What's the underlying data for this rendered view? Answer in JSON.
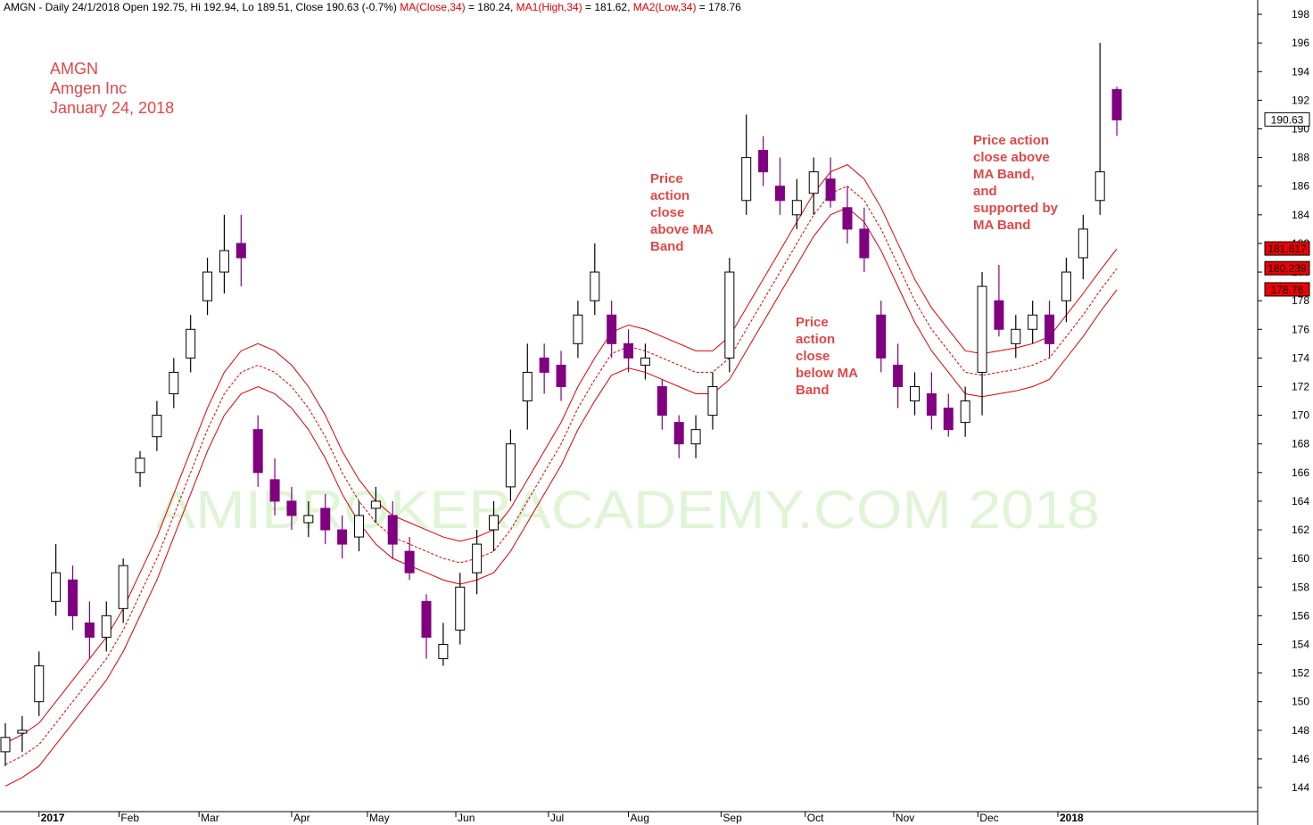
{
  "chart_data": {
    "type": "candlestick",
    "header": [
      {
        "text": "AMGN - Daily 24/1/2018 Open 192.75, Hi 192.94, Lo 189.51, Close 190.63 (-0.7%) ",
        "color": "#000000"
      },
      {
        "text": "MA(Close,34)",
        "color": "#dd0000"
      },
      {
        "text": " = 180.24, ",
        "color": "#000000"
      },
      {
        "text": "MA1(High,34)",
        "color": "#dd0000"
      },
      {
        "text": " = 181.62, ",
        "color": "#000000"
      },
      {
        "text": "MA2(Low,34)",
        "color": "#dd0000"
      },
      {
        "text": " = 178.76",
        "color": "#000000"
      }
    ],
    "title_lines": [
      "AMGN",
      "Amgen Inc",
      "January 24, 2018"
    ],
    "annotations": [
      {
        "lines": [
          "Price",
          "action",
          "close",
          "above MA",
          "Band"
        ]
      },
      {
        "lines": [
          "Price",
          "action",
          "close",
          "below MA",
          "Band"
        ]
      },
      {
        "lines": [
          "Price action",
          "close above",
          "MA Band,",
          "and",
          "supported by",
          "MA Band"
        ]
      }
    ],
    "watermark": "AMIBROKERACADEMY.COM  2018",
    "x": [
      0,
      4,
      8,
      12,
      16,
      20,
      24,
      28,
      32,
      36,
      40,
      44,
      48,
      52,
      56,
      60,
      64,
      68,
      72,
      76,
      80,
      84,
      88,
      92,
      96,
      100,
      104,
      108,
      112,
      116,
      120,
      124,
      128,
      132,
      136,
      140,
      144,
      148,
      152,
      156,
      160,
      164,
      168,
      172,
      176,
      180,
      184,
      188,
      192,
      196,
      200,
      204,
      208,
      212,
      216,
      220,
      224,
      228,
      232,
      236,
      240,
      244,
      248,
      252,
      256,
      260,
      264
    ],
    "open": [
      146.5,
      147.8,
      150,
      157,
      158.5,
      155.5,
      154.5,
      156.5,
      166,
      168.5,
      171.5,
      174,
      178,
      180,
      182,
      169,
      165.5,
      164,
      162.5,
      163.5,
      162,
      161.5,
      163.5,
      163,
      160.5,
      157,
      153,
      155,
      159,
      162,
      165,
      171,
      174,
      173.5,
      175,
      178,
      177,
      175,
      173.5,
      172,
      169.5,
      168,
      170,
      174,
      185,
      188.5,
      186,
      184,
      185.5,
      186.5,
      184.5,
      183,
      177,
      173.5,
      171,
      171.5,
      170.5,
      169.5,
      173,
      178,
      175,
      176,
      177,
      178,
      181,
      185,
      192.75
    ],
    "high": [
      148.5,
      149,
      153.5,
      161,
      159.5,
      157,
      157,
      160,
      167.5,
      171,
      174,
      177,
      181,
      184,
      184,
      170,
      167,
      165,
      164,
      164.5,
      163,
      164,
      165,
      164,
      161.5,
      157.5,
      155.5,
      159,
      162,
      164,
      169,
      175,
      175,
      174.5,
      178,
      182,
      178,
      176,
      175,
      172.5,
      170,
      170,
      173,
      181,
      191,
      189.5,
      188,
      186.5,
      188,
      188,
      186,
      184.5,
      178,
      175,
      173,
      173,
      171.5,
      172,
      180,
      180.5,
      177,
      178,
      178,
      181,
      184,
      196,
      192.94
    ],
    "low": [
      145.5,
      146.5,
      149,
      156,
      155,
      153,
      153.5,
      155.5,
      165,
      167.5,
      170.5,
      173,
      177,
      178.5,
      179,
      165,
      163,
      162,
      161.5,
      161,
      160,
      160.5,
      162.5,
      160,
      158.5,
      153,
      152.5,
      154,
      157.5,
      160.5,
      164,
      169,
      171.5,
      171,
      174,
      177,
      174,
      173,
      172.5,
      169,
      167,
      167,
      169,
      173,
      184,
      186,
      184,
      183,
      184,
      184.5,
      182,
      180,
      173,
      170.5,
      170,
      169,
      168.5,
      168.5,
      170,
      175.5,
      174,
      175,
      174,
      176.5,
      179.5,
      184,
      189.51
    ],
    "close": [
      147.5,
      148,
      152.5,
      159,
      156,
      154.5,
      156,
      159.5,
      167,
      170,
      173,
      176,
      180,
      181.5,
      181,
      166,
      164,
      163,
      163,
      162,
      161,
      163,
      164,
      161,
      159,
      154.5,
      154,
      158,
      161,
      163,
      168,
      173,
      173,
      172,
      177,
      180,
      175,
      174,
      174,
      170,
      168,
      169,
      172,
      180,
      188,
      187,
      185,
      185,
      187,
      185,
      183,
      181,
      174,
      172,
      172,
      170,
      169,
      171,
      179,
      176,
      176,
      177,
      175,
      180,
      183,
      187,
      190.63
    ],
    "up_color": "#ffffff",
    "down_color": "#800080",
    "series": [
      {
        "name": "MA1(High,34)",
        "color": "#dd0000",
        "dash": false,
        "values": [
          147.1,
          147.7,
          148.5,
          150,
          151.5,
          153,
          154.5,
          156.5,
          159,
          161.5,
          164.5,
          167.5,
          170.5,
          173,
          174.5,
          175,
          174.5,
          173.5,
          172,
          170,
          167.5,
          165.5,
          164,
          163,
          162.5,
          162,
          161.5,
          161.2,
          161.5,
          162,
          163.5,
          165.5,
          167.5,
          169.5,
          172,
          174,
          175.8,
          176.3,
          176,
          175.5,
          175,
          174.5,
          174.5,
          175.5,
          177.5,
          179.5,
          181.5,
          183.5,
          185.5,
          187,
          187.5,
          186.5,
          184.5,
          182,
          179.5,
          177.5,
          176,
          174.5,
          174.3,
          174.5,
          174.7,
          175,
          175.5,
          177,
          178.5,
          180.1,
          181.617
        ]
      },
      {
        "name": "MA(Close,34)",
        "color": "#dd0000",
        "dash": true,
        "values": [
          145.6,
          146.2,
          147,
          148.5,
          150,
          151.5,
          153,
          155,
          157.5,
          160,
          163,
          166,
          169,
          171.5,
          173,
          173.5,
          173,
          172,
          170.5,
          168.5,
          166,
          164,
          162.5,
          161.5,
          161,
          160.5,
          160,
          159.7,
          160,
          160.5,
          162,
          164,
          166,
          168,
          170.5,
          172.5,
          174.3,
          174.8,
          174.5,
          174,
          173.5,
          173,
          173,
          174,
          176,
          178,
          180,
          182,
          184,
          185.5,
          186,
          185,
          183,
          180.5,
          178,
          176,
          174.5,
          173,
          172.8,
          173,
          173.2,
          173.5,
          174,
          175.5,
          177,
          178.7,
          180.239
        ]
      },
      {
        "name": "MA2(Low,34)",
        "color": "#dd0000",
        "dash": false,
        "values": [
          144.1,
          144.7,
          145.5,
          147,
          148.5,
          150,
          151.5,
          153.5,
          156,
          158.5,
          161.5,
          164.5,
          167.5,
          170,
          171.5,
          172,
          171.5,
          170.5,
          169,
          167,
          164.5,
          162.5,
          161,
          160,
          159.5,
          159,
          158.5,
          158.2,
          158.5,
          159,
          160.5,
          162.5,
          164.5,
          166.5,
          169,
          171,
          172.8,
          173.3,
          173,
          172.5,
          172,
          171.5,
          171.5,
          172.5,
          174.5,
          176.5,
          178.5,
          180.5,
          182.5,
          184,
          184.5,
          183.5,
          181.5,
          179,
          176.5,
          174.5,
          173,
          171.5,
          171.3,
          171.5,
          171.7,
          172,
          172.5,
          174,
          175.5,
          177.2,
          178.76
        ]
      }
    ],
    "price_labels": [
      {
        "value": 190.63,
        "label": "190.63",
        "color": "#ffffff"
      },
      {
        "value": 181.617,
        "label": "181.617",
        "color": "#ee0000"
      },
      {
        "value": 180.239,
        "label": "180.239",
        "color": "#ee0000"
      },
      {
        "value": 178.76,
        "label": "178.76",
        "color": "#ee0000"
      }
    ],
    "xlim": [
      -1.27,
      297.46
    ],
    "xticks": [
      {
        "value": 8,
        "label": "2017"
      },
      {
        "value": 27,
        "label": "Feb"
      },
      {
        "value": 46,
        "label": "Mar"
      },
      {
        "value": 68,
        "label": "Apr"
      },
      {
        "value": 86,
        "label": "May"
      },
      {
        "value": 107,
        "label": "Jun"
      },
      {
        "value": 129,
        "label": "Jul"
      },
      {
        "value": 148,
        "label": "Aug"
      },
      {
        "value": 170,
        "label": "Sep"
      },
      {
        "value": 190,
        "label": "Oct"
      },
      {
        "value": 211,
        "label": "Nov"
      },
      {
        "value": 231,
        "label": "Dec"
      },
      {
        "value": 250,
        "label": "2018"
      }
    ],
    "ylim": [
      142.32,
      199
    ],
    "yticks": [
      144,
      146,
      148,
      150,
      152,
      154,
      156,
      158,
      160,
      162,
      164,
      166,
      168,
      170,
      172,
      174,
      176,
      178,
      180,
      182,
      184,
      186,
      188,
      190,
      192,
      194,
      196,
      198
    ]
  }
}
